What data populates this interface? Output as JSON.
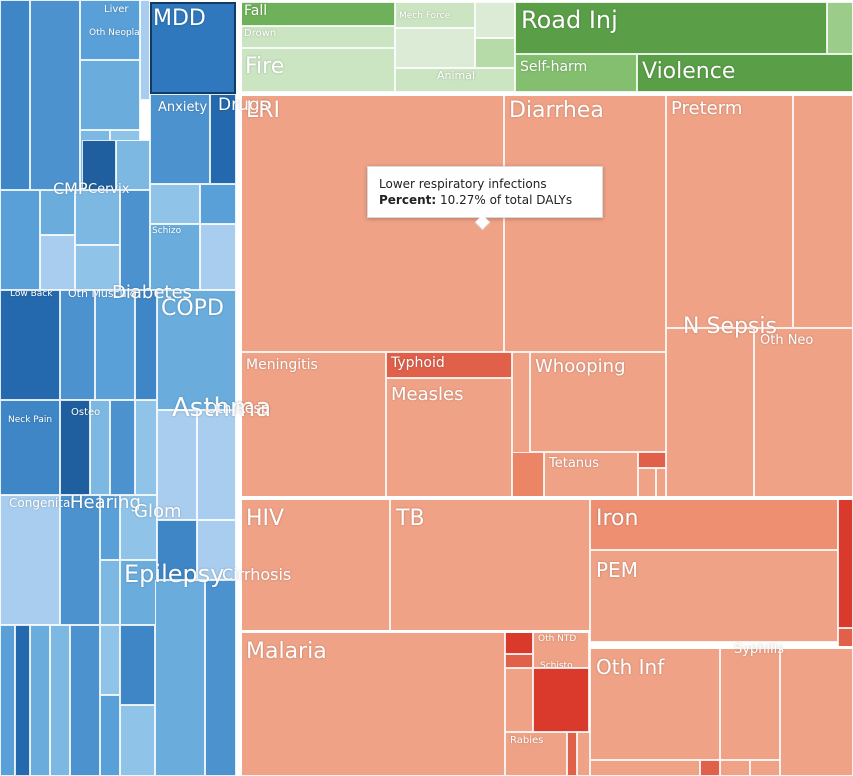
{
  "chart_data": {
    "type": "treemap",
    "tooltip": {
      "title": "Lower respiratory infections",
      "percent_label": "Percent:",
      "percent_value": "10.27% of total DALYs"
    },
    "colors": {
      "communicable": "#f0a286",
      "communicable_dark": "#e0604a",
      "communicable_red": "#d93a2c",
      "noncommunicable": "#3f86c6",
      "noncommunicable_light": "#a9cdee",
      "injuries": "#6fb15a",
      "injuries_light": "#cbe4c2"
    },
    "cells": [
      {
        "label": "LRI"
      },
      {
        "label": "Diarrhea"
      },
      {
        "label": "Preterm"
      },
      {
        "label": "N Sepsis"
      },
      {
        "label": "Oth Neo"
      },
      {
        "label": "Meningitis"
      },
      {
        "label": "Typhoid"
      },
      {
        "label": "Measles"
      },
      {
        "label": "Whooping"
      },
      {
        "label": "Tetanus"
      },
      {
        "label": "HIV"
      },
      {
        "label": "TB"
      },
      {
        "label": "Iron"
      },
      {
        "label": "PEM"
      },
      {
        "label": "Syphilis"
      },
      {
        "label": "Malaria"
      },
      {
        "label": "Oth NTD"
      },
      {
        "label": "Schisto"
      },
      {
        "label": "Rabies"
      },
      {
        "label": "Oth Inf"
      },
      {
        "label": "Fall"
      },
      {
        "label": "Drown"
      },
      {
        "label": "Mech Force"
      },
      {
        "label": "Road Inj"
      },
      {
        "label": "Fire"
      },
      {
        "label": "Animal"
      },
      {
        "label": "Self-harm"
      },
      {
        "label": "Violence"
      },
      {
        "label": "MDD"
      },
      {
        "label": "Liver"
      },
      {
        "label": "Oth Neopla"
      },
      {
        "label": "Anxiety"
      },
      {
        "label": "Drugs"
      },
      {
        "label": "CMP"
      },
      {
        "label": "Cervix"
      },
      {
        "label": "Schizo"
      },
      {
        "label": "Low Back"
      },
      {
        "label": "Oth Musculo"
      },
      {
        "label": "Diabetes"
      },
      {
        "label": "COPD"
      },
      {
        "label": "Asthma"
      },
      {
        "label": "Oth Resp"
      },
      {
        "label": "Neck Pain"
      },
      {
        "label": "Osteo"
      },
      {
        "label": "Congenital"
      },
      {
        "label": "Hearing"
      },
      {
        "label": "Glom"
      },
      {
        "label": "Epilepsy"
      },
      {
        "label": "Cirrhosis"
      }
    ]
  }
}
